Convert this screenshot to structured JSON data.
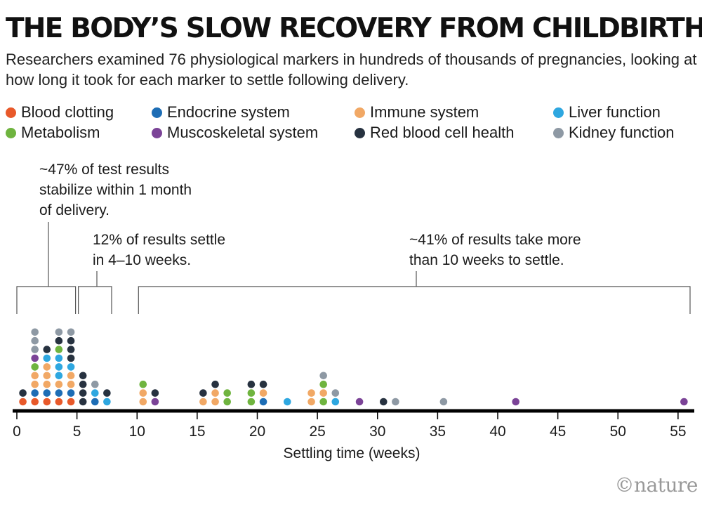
{
  "header": {
    "title": "THE BODY’S SLOW RECOVERY FROM CHILDBIRTH",
    "subtitle": "Researchers examined 76 physiological markers in hundreds of thousands of pregnancies, looking at how long it took for each marker to settle following delivery."
  },
  "legend": [
    {
      "label": "Blood clotting",
      "color": "#e8592a"
    },
    {
      "label": "Endocrine system",
      "color": "#1d6db5"
    },
    {
      "label": "Immune system",
      "color": "#f1a865"
    },
    {
      "label": "Liver function",
      "color": "#2ea7e0"
    },
    {
      "label": "Metabolism",
      "color": "#6fb43f"
    },
    {
      "label": "Muscoskeletal system",
      "color": "#7b4397"
    },
    {
      "label": "Red blood cell health",
      "color": "#273240"
    },
    {
      "label": "Kidney function",
      "color": "#8e99a4"
    }
  ],
  "annotations": {
    "first": [
      "~47% of test results",
      "stabilize within 1 month",
      "of delivery."
    ],
    "second": [
      "12% of results settle",
      "in 4–10 weeks."
    ],
    "third": [
      "~41% of results take more",
      "than 10 weeks to settle."
    ]
  },
  "chart_data": {
    "type": "scatter",
    "subtype": "dot-strip",
    "xlabel": "Settling time (weeks)",
    "xlim": [
      0,
      56
    ],
    "xticks": [
      0,
      5,
      10,
      15,
      20,
      25,
      30,
      35,
      40,
      45,
      50,
      55
    ],
    "brackets": [
      {
        "from": 0,
        "to": 5,
        "annotation": "first"
      },
      {
        "from": 5,
        "to": 8,
        "annotation": "second"
      },
      {
        "from": 10,
        "to": 56,
        "annotation": "third"
      }
    ],
    "series": [
      {
        "name": "Blood clotting",
        "color": "#e8592a",
        "points": [
          [
            0.5,
            1
          ],
          [
            1.5,
            1
          ],
          [
            2.5,
            1
          ],
          [
            3.5,
            1
          ],
          [
            4.5,
            1
          ]
        ]
      },
      {
        "name": "Endocrine system",
        "color": "#1d6db5",
        "points": [
          [
            1.5,
            2
          ],
          [
            2.5,
            2
          ],
          [
            3.5,
            2
          ],
          [
            4.5,
            2
          ],
          [
            6.5,
            1
          ],
          [
            20.5,
            1
          ]
        ]
      },
      {
        "name": "Immune system",
        "color": "#f1a865",
        "points": [
          [
            1.5,
            3
          ],
          [
            1.5,
            4
          ],
          [
            2.5,
            3
          ],
          [
            2.5,
            4
          ],
          [
            2.5,
            5
          ],
          [
            3.5,
            3
          ],
          [
            4.5,
            3
          ],
          [
            4.5,
            4
          ],
          [
            10.5,
            1
          ],
          [
            10.5,
            2
          ],
          [
            15.5,
            1
          ],
          [
            16.5,
            1
          ],
          [
            16.5,
            2
          ],
          [
            20.5,
            2
          ],
          [
            24.5,
            1
          ],
          [
            24.5,
            2
          ],
          [
            25.5,
            2
          ]
        ]
      },
      {
        "name": "Liver function",
        "color": "#2ea7e0",
        "points": [
          [
            2.5,
            6
          ],
          [
            3.5,
            4
          ],
          [
            3.5,
            5
          ],
          [
            3.5,
            6
          ],
          [
            4.5,
            5
          ],
          [
            6.5,
            2
          ],
          [
            7.5,
            1
          ],
          [
            22.5,
            1
          ],
          [
            26.5,
            1
          ]
        ]
      },
      {
        "name": "Metabolism",
        "color": "#6fb43f",
        "points": [
          [
            1.5,
            5
          ],
          [
            3.5,
            7
          ],
          [
            10.5,
            3
          ],
          [
            17.5,
            1
          ],
          [
            17.5,
            2
          ],
          [
            19.5,
            1
          ],
          [
            19.5,
            2
          ],
          [
            25.5,
            1
          ],
          [
            25.5,
            3
          ]
        ]
      },
      {
        "name": "Muscoskeletal system",
        "color": "#7b4397",
        "points": [
          [
            1.5,
            6
          ],
          [
            11.5,
            1
          ],
          [
            28.5,
            1
          ],
          [
            41.5,
            1
          ],
          [
            55.5,
            1
          ]
        ]
      },
      {
        "name": "Red blood cell health",
        "color": "#273240",
        "points": [
          [
            0.5,
            2
          ],
          [
            2.5,
            7
          ],
          [
            3.5,
            8
          ],
          [
            4.5,
            6
          ],
          [
            4.5,
            7
          ],
          [
            4.5,
            8
          ],
          [
            5.5,
            1
          ],
          [
            5.5,
            2
          ],
          [
            5.5,
            3
          ],
          [
            5.5,
            4
          ],
          [
            7.5,
            2
          ],
          [
            11.5,
            2
          ],
          [
            15.5,
            2
          ],
          [
            16.5,
            3
          ],
          [
            19.5,
            3
          ],
          [
            20.5,
            3
          ],
          [
            30.5,
            1
          ]
        ]
      },
      {
        "name": "Kidney function",
        "color": "#8e99a4",
        "points": [
          [
            1.5,
            7
          ],
          [
            1.5,
            8
          ],
          [
            1.5,
            9
          ],
          [
            3.5,
            9
          ],
          [
            4.5,
            9
          ],
          [
            6.5,
            3
          ],
          [
            25.5,
            4
          ],
          [
            26.5,
            2
          ],
          [
            31.5,
            1
          ],
          [
            35.5,
            1
          ]
        ]
      }
    ]
  },
  "credit": "©nature"
}
